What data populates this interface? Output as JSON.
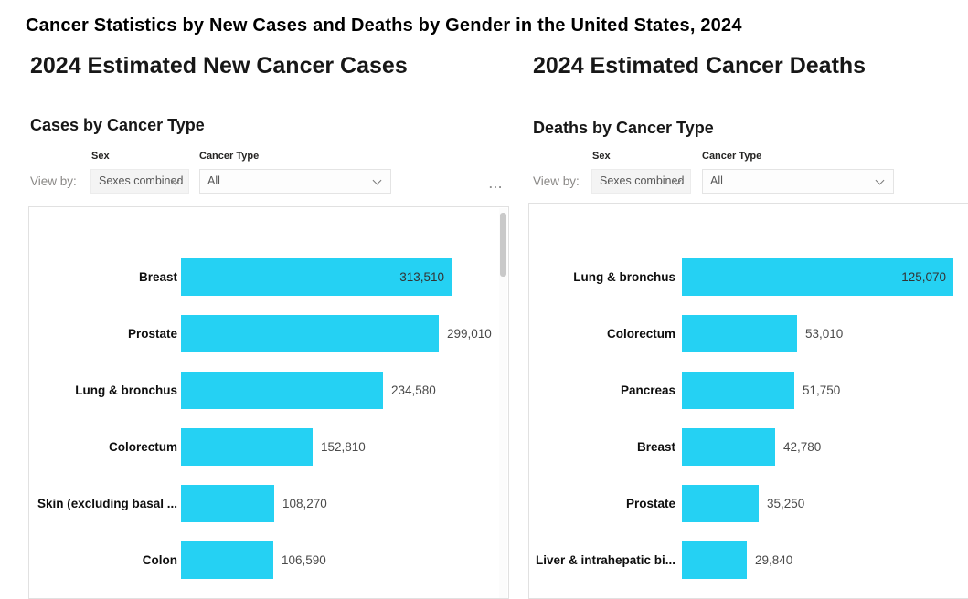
{
  "page_title": "Cancer Statistics by New Cases and Deaths by Gender in the United States, 2024",
  "colors": {
    "bar": "#25D1F3"
  },
  "panels": [
    {
      "section_title": "2024 Estimated New Cancer Cases",
      "chart_title": "Cases by Cancer Type",
      "view_by_label": "View by:",
      "sex_filter": {
        "label": "Sex",
        "value": "Sexes combined"
      },
      "type_filter": {
        "label": "Cancer Type",
        "value": "All"
      },
      "more_options": "..."
    },
    {
      "section_title": "2024 Estimated Cancer Deaths",
      "chart_title": "Deaths by Cancer Type",
      "view_by_label": "View by:",
      "sex_filter": {
        "label": "Sex",
        "value": "Sexes combined"
      },
      "type_filter": {
        "label": "Cancer Type",
        "value": "All"
      }
    }
  ],
  "chart_data": [
    {
      "type": "bar",
      "orientation": "horizontal",
      "title": "Cases by Cancer Type",
      "categories": [
        "Breast",
        "Prostate",
        "Lung & bronchus",
        "Colorectum",
        "Skin (excluding basal ...",
        "Colon"
      ],
      "values": [
        313510,
        299010,
        234580,
        152810,
        108270,
        106590
      ],
      "value_labels": [
        "313,510",
        "299,010",
        "234,580",
        "152,810",
        "108,270",
        "106,590"
      ],
      "xlim": [
        0,
        313510
      ],
      "grid": false,
      "legend": "none"
    },
    {
      "type": "bar",
      "orientation": "horizontal",
      "title": "Deaths by Cancer Type",
      "categories": [
        "Lung & bronchus",
        "Colorectum",
        "Pancreas",
        "Breast",
        "Prostate",
        "Liver & intrahepatic bi..."
      ],
      "values": [
        125070,
        53010,
        51750,
        42780,
        35250,
        29840
      ],
      "value_labels": [
        "125,070",
        "53,010",
        "51,750",
        "42,780",
        "35,250",
        "29,840"
      ],
      "xlim": [
        0,
        125070
      ],
      "grid": false,
      "legend": "none"
    }
  ]
}
